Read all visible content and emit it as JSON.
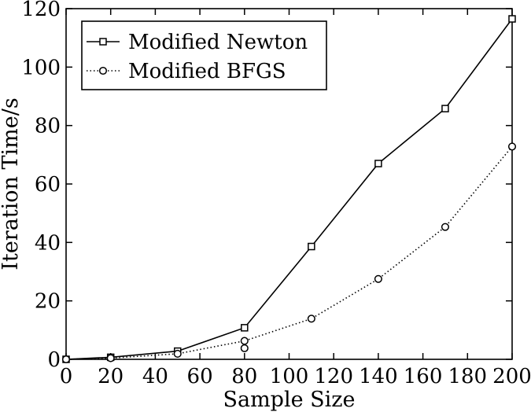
{
  "chart_data": {
    "type": "line",
    "title": "",
    "xlabel": "Sample Size",
    "ylabel": "Iteration Time/s",
    "xlim": [
      0,
      200
    ],
    "ylim": [
      0,
      120
    ],
    "x_ticks": [
      0,
      20,
      40,
      60,
      80,
      100,
      120,
      140,
      160,
      180,
      200
    ],
    "y_ticks": [
      0,
      20,
      40,
      60,
      80,
      100,
      120
    ],
    "grid": false,
    "legend_position": "top-left",
    "series": [
      {
        "name": "Modified Newton",
        "line_style": "solid",
        "marker": "square",
        "color": "#000000",
        "points": [
          {
            "x": 0,
            "y": 0
          },
          {
            "x": 20,
            "y": 0.7
          },
          {
            "x": 50,
            "y": 2.8
          },
          {
            "x": 80,
            "y": 10.8
          },
          {
            "x": 110,
            "y": 38.6
          },
          {
            "x": 140,
            "y": 67.0
          },
          {
            "x": 170,
            "y": 85.8
          },
          {
            "x": 200,
            "y": 116.5
          }
        ]
      },
      {
        "name": "Modified BFGS",
        "line_style": "dotted",
        "marker": "circle",
        "color": "#000000",
        "points": [
          {
            "x": 0,
            "y": 0
          },
          {
            "x": 20,
            "y": 0.4
          },
          {
            "x": 50,
            "y": 1.9
          },
          {
            "x": 80,
            "y": 6.3
          },
          {
            "x": 110,
            "y": 13.9
          },
          {
            "x": 140,
            "y": 27.5
          },
          {
            "x": 170,
            "y": 45.3
          },
          {
            "x": 200,
            "y": 72.8
          }
        ],
        "extra_markers": [
          {
            "x": 80,
            "y": 3.8
          }
        ]
      }
    ]
  }
}
